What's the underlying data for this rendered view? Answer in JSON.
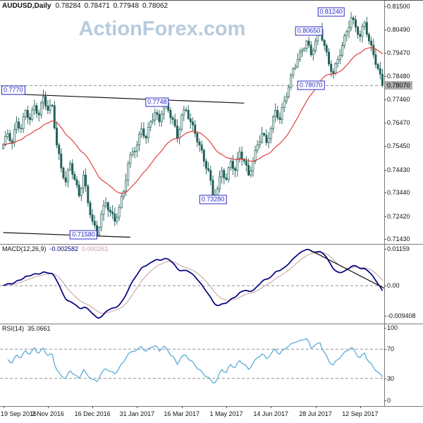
{
  "header": {
    "symbol_period": "AUDUSD,Daily",
    "open": "0.78284",
    "high": "0.78471",
    "low": "0.77948",
    "close": "0.78062"
  },
  "watermark": "ActionForex.com",
  "colors": {
    "candle": "#1e5f56",
    "candle_up_fill": "#ffffff",
    "ma": "#e03232",
    "watermark": "#b7cbdd",
    "annotation": "#2b2bc8",
    "macd_line": "#000080",
    "macd_signal": "#c79e9e",
    "rsi_line": "#4fa6d8",
    "dashed": "#909090",
    "trendline": "#141414",
    "separator": "#7a7a7a",
    "current_tag_bg": "#adadad"
  },
  "main_axis_labels": [
    "0.81500",
    "0.80490",
    "0.79470",
    "0.78480",
    "0.77460",
    "0.76470",
    "0.75450",
    "0.74430",
    "0.73440",
    "0.72420",
    "0.71430"
  ],
  "current_price": {
    "text": "0.78070",
    "value": 0.7807
  },
  "annotations": {
    "boxes": [
      {
        "text": "0.7770",
        "bar": 2,
        "price": 0.7788
      },
      {
        "text": "0.7748",
        "bar": 69,
        "price": 0.7736
      },
      {
        "text": "0.71580",
        "bar": 36,
        "price": 0.7162
      },
      {
        "text": "0.73280",
        "bar": 94,
        "price": 0.7314
      },
      {
        "text": "0.78070",
        "bar": 138,
        "price": 0.7807
      },
      {
        "text": "0.80650",
        "bar": 137,
        "price": 0.8043
      },
      {
        "text": "0.81240",
        "bar": 147,
        "price": 0.8124
      }
    ],
    "trendlines": [
      {
        "b1": 0,
        "p1": 0.7772,
        "b2": 108,
        "p2": 0.7731
      },
      {
        "b1": 0,
        "p1": 0.7171,
        "b2": 57,
        "p2": 0.7151
      }
    ],
    "macd_trendline": {
      "end_value": -0.0008
    }
  },
  "macd": {
    "label": "MACD(12,26,9)",
    "value_main": "-0.002582",
    "value_signal": "0.000261",
    "axis_labels": [
      "0.01159",
      "0.00",
      "-0.009408"
    ]
  },
  "rsi": {
    "label": "RSI(14)",
    "value": "35.0661",
    "period": 14,
    "levels": [
      70,
      30
    ],
    "axis_labels": [
      "100",
      "70",
      "30",
      "0"
    ]
  },
  "date_axis": {
    "labels": [
      "19 Sep 2016",
      "2 Nov 2016",
      "16 Dec 2016",
      "31 Jan 2017",
      "16 Mar 2017",
      "1 May 2017",
      "14 Jun 2017",
      "28 Jul 2017",
      "12 Sep 2017"
    ],
    "tick_bars": [
      0,
      20,
      40,
      60,
      80,
      100,
      120,
      140,
      160
    ]
  },
  "chart_data": {
    "type": "candlestick",
    "symbol": "AUDUSD",
    "timeframe": "Daily",
    "title": "AUDUSD Daily",
    "ylim": [
      0.7143,
      0.815
    ],
    "x_tick_labels": [
      "19 Sep 2016",
      "2 Nov 2016",
      "16 Dec 2016",
      "31 Jan 2017",
      "16 Mar 2017",
      "1 May 2017",
      "14 Jun 2017",
      "28 Jul 2017",
      "12 Sep 2017"
    ],
    "closes": [
      0.755,
      0.7587,
      0.76,
      0.7568,
      0.756,
      0.7617,
      0.765,
      0.7623,
      0.762,
      0.7672,
      0.77,
      0.7668,
      0.766,
      0.7702,
      0.772,
      0.7688,
      0.768,
      0.7732,
      0.776,
      0.7718,
      0.77,
      0.7722,
      0.772,
      0.7623,
      0.755,
      0.7512,
      0.745,
      0.7408,
      0.739,
      0.7442,
      0.747,
      0.7423,
      0.74,
      0.7377,
      0.733,
      0.7363,
      0.742,
      0.7372,
      0.73,
      0.7248,
      0.722,
      0.7202,
      0.716,
      0.7193,
      0.725,
      0.7287,
      0.73,
      0.7268,
      0.726,
      0.7252,
      0.722,
      0.7238,
      0.728,
      0.7327,
      0.735,
      0.7398,
      0.747,
      0.7507,
      0.752,
      0.7523,
      0.755,
      0.7597,
      0.762,
      0.7588,
      0.758,
      0.7627,
      0.765,
      0.7658,
      0.769,
      0.7682,
      0.765,
      0.7683,
      0.774,
      0.7732,
      0.77,
      0.7668,
      0.766,
      0.7632,
      0.758,
      0.7618,
      0.768,
      0.7702,
      0.77,
      0.7663,
      0.765,
      0.7637,
      0.76,
      0.7563,
      0.755,
      0.7527,
      0.748,
      0.7448,
      0.744,
      0.7397,
      0.733,
      0.7333,
      0.736,
      0.7412,
      0.744,
      0.7408,
      0.74,
      0.7452,
      0.748,
      0.7448,
      0.744,
      0.7492,
      0.752,
      0.7488,
      0.748,
      0.7462,
      0.742,
      0.7438,
      0.748,
      0.7527,
      0.755,
      0.7563,
      0.76,
      0.7592,
      0.756,
      0.7578,
      0.762,
      0.7672,
      0.77,
      0.7668,
      0.766,
      0.7712,
      0.774,
      0.7758,
      0.78,
      0.7852,
      0.788,
      0.7888,
      0.792,
      0.7952,
      0.796,
      0.7968,
      0.8,
      0.7982,
      0.794,
      0.7958,
      0.8,
      0.8037,
      0.805,
      0.8003,
      0.798,
      0.7952,
      0.79,
      0.7868,
      0.786,
      0.7902,
      0.792,
      0.7938,
      0.798,
      0.8022,
      0.804,
      0.8058,
      0.81,
      0.8092,
      0.806,
      0.8028,
      0.802,
      0.8062,
      0.808,
      0.8028,
      0.8,
      0.7982,
      0.794,
      0.7898,
      0.788,
      0.7856,
      0.7807
    ],
    "extremes": [
      {
        "bar": 42,
        "kind": "low",
        "price": 0.7158
      },
      {
        "bar": 142,
        "kind": "high",
        "price": 0.8065
      },
      {
        "bar": 156,
        "kind": "high",
        "price": 0.8124
      }
    ],
    "overlays": [
      {
        "name": "moving-average",
        "period": 30,
        "color": "#e03232"
      }
    ],
    "sub_charts": [
      {
        "type": "line",
        "name": "MACD(12,26,9)",
        "current_values": [
          -0.002582,
          0.000261
        ],
        "axis_range": [
          -0.009408,
          0.01159
        ]
      },
      {
        "type": "line",
        "name": "RSI(14)",
        "current_value": 35.0661,
        "levels": [
          70,
          30
        ],
        "axis_range": [
          0,
          100
        ]
      }
    ]
  }
}
